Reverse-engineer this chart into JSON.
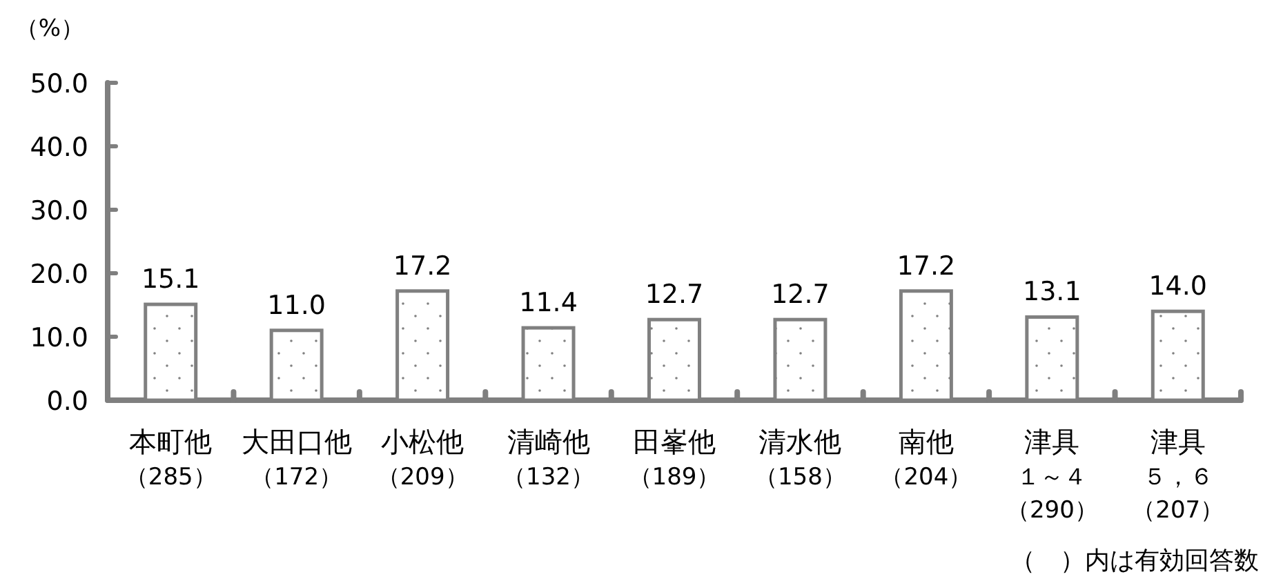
{
  "chart_data": {
    "type": "bar",
    "ylabel": "（%）",
    "categories": [
      "本町他（285）",
      "大田口他（172）",
      "小松他（209）",
      "清崎他（132）",
      "田峯他（189）",
      "清水他（158）",
      "南他（204）",
      "津具１～４（290）",
      "津具５，６（207）"
    ],
    "values": [
      15.1,
      11.0,
      17.2,
      11.4,
      12.7,
      12.7,
      17.2,
      13.1,
      14.0
    ],
    "color": "#808080",
    "ylim": [
      0,
      50
    ],
    "yticks": [
      {
        "value": 0,
        "label": "0.0"
      },
      {
        "value": 10,
        "label": "10.0"
      },
      {
        "value": 20,
        "label": "20.0"
      },
      {
        "value": 30,
        "label": "30.0"
      },
      {
        "value": 40,
        "label": "40.0"
      },
      {
        "value": 50,
        "label": "50.0"
      }
    ],
    "value_labels": [
      "15.1",
      "11.0",
      "17.2",
      "11.4",
      "12.7",
      "12.7",
      "17.2",
      "13.1",
      "14.0"
    ],
    "grid": false,
    "annotations": [
      "（　）内は有効回答数"
    ]
  }
}
